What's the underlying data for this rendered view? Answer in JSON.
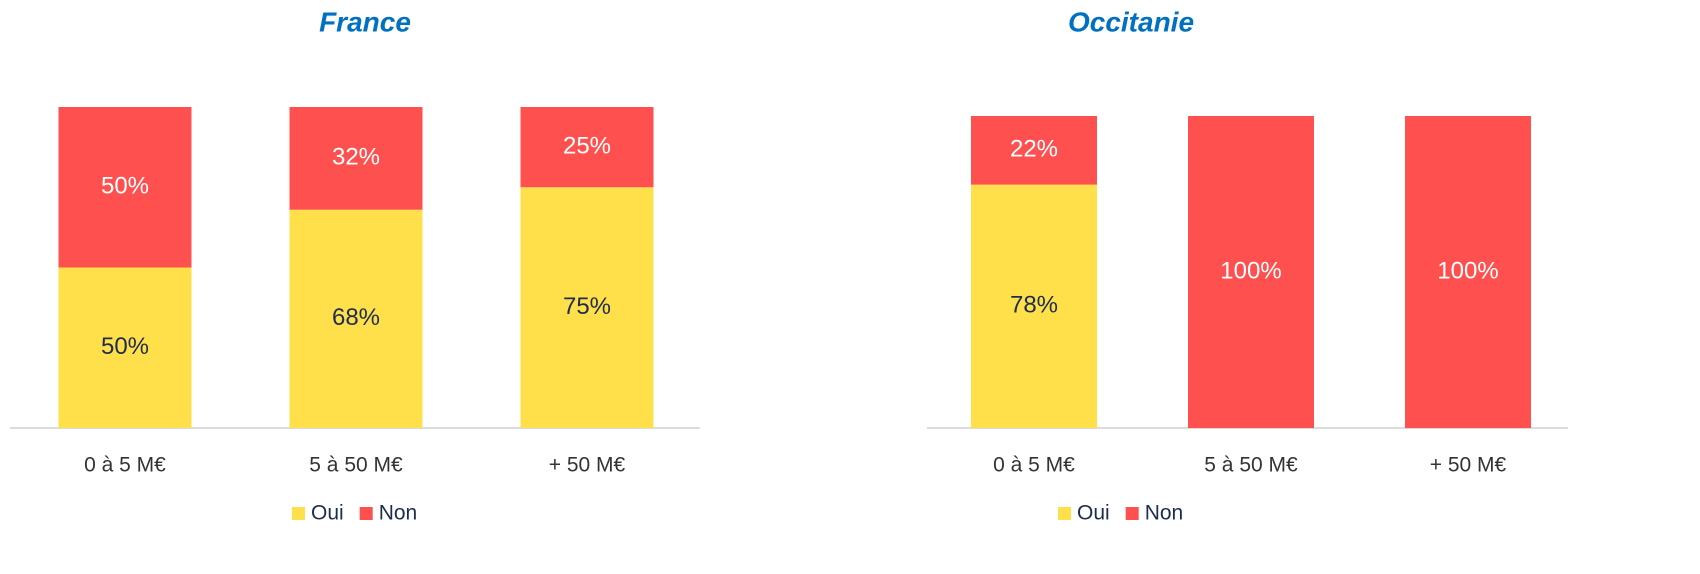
{
  "chart_data": [
    {
      "type": "stacked_bar",
      "title": "France",
      "categories": [
        "0 à 5 M€",
        "5 à 50 M€",
        "+ 50 M€"
      ],
      "series": [
        {
          "name": "Oui",
          "color": "#ffe04b",
          "values": [
            50,
            68,
            75
          ],
          "value_labels": [
            "50%",
            "68%",
            "75%"
          ]
        },
        {
          "name": "Non",
          "color": "#ff5050",
          "values": [
            50,
            32,
            25
          ],
          "value_labels": [
            "50%",
            "32%",
            "25%"
          ]
        }
      ]
    },
    {
      "type": "stacked_bar",
      "title": "Occitanie",
      "categories": [
        "0 à 5 M€",
        "5 à 50 M€",
        "+ 50 M€"
      ],
      "series": [
        {
          "name": "Oui",
          "color": "#ffe04b",
          "values": [
            78,
            0,
            0
          ],
          "value_labels": [
            "78%",
            null,
            null
          ]
        },
        {
          "name": "Non",
          "color": "#ff5050",
          "values": [
            22,
            100,
            100
          ],
          "value_labels": [
            "22%",
            "100%",
            "100%"
          ]
        }
      ]
    }
  ]
}
